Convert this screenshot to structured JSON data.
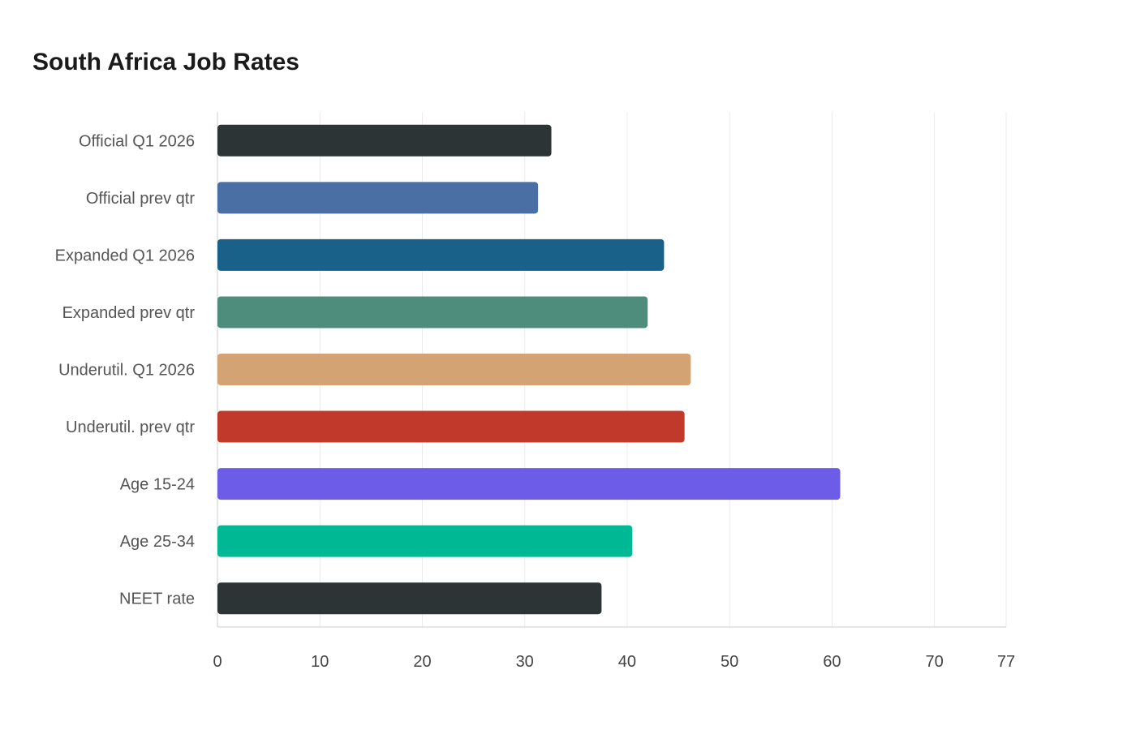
{
  "chart_data": {
    "type": "bar",
    "orientation": "horizontal",
    "title": "South Africa Job Rates",
    "xlabel": "",
    "ylabel": "",
    "xlim": [
      0,
      77
    ],
    "x_ticks": [
      0,
      10,
      20,
      30,
      40,
      50,
      60,
      70,
      77
    ],
    "grid": true,
    "categories": [
      "Official Q1 2026",
      "Official prev qtr",
      "Expanded Q1 2026",
      "Expanded prev qtr",
      "Underutil. Q1 2026",
      "Underutil. prev qtr",
      "Age 15-24",
      "Age 25-34",
      "NEET rate"
    ],
    "values": [
      32.6,
      31.3,
      43.6,
      42.0,
      46.2,
      45.6,
      60.8,
      40.5,
      37.5
    ],
    "colors": [
      "#2d3436",
      "#4a6fa5",
      "#1a6189",
      "#4e8d7c",
      "#d4a373",
      "#c0392b",
      "#6c5ce7",
      "#00b894",
      "#2d3436"
    ]
  }
}
